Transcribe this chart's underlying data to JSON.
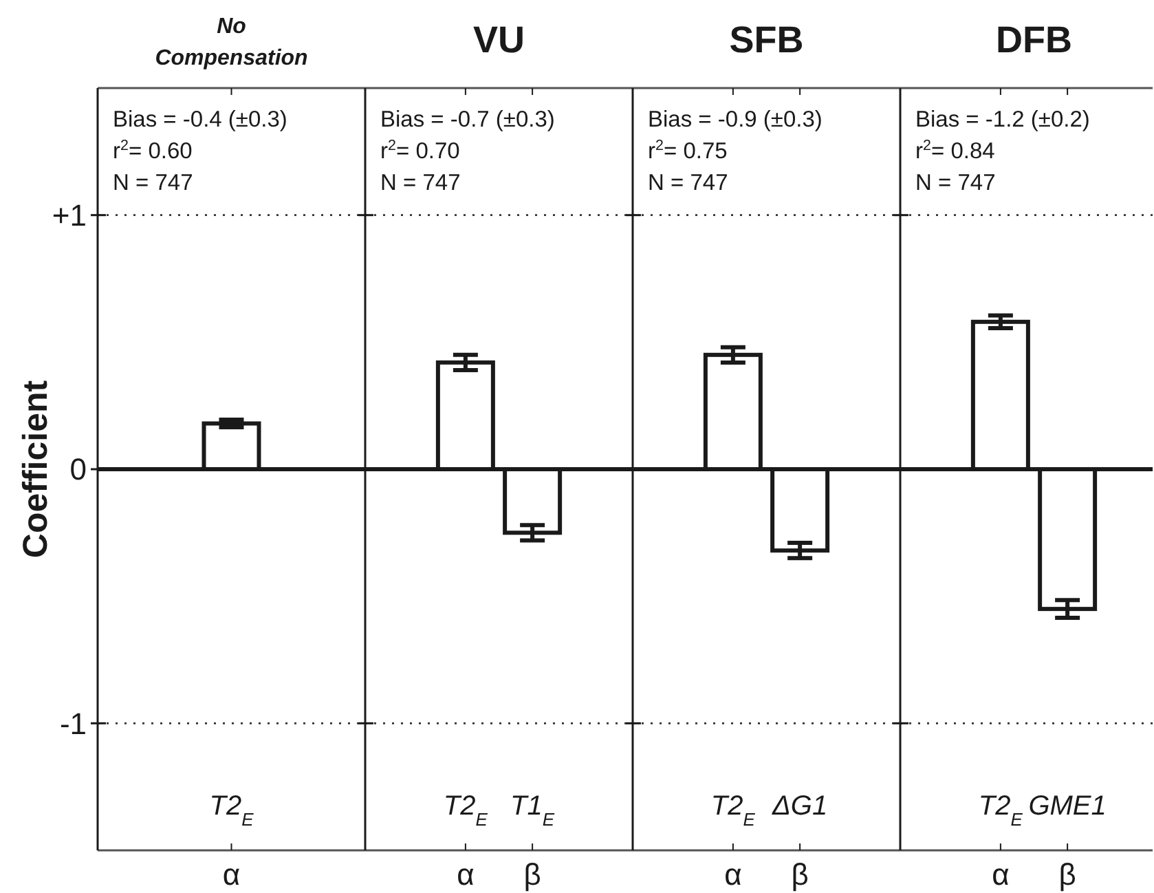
{
  "chart_data": [
    {
      "type": "bar",
      "title": "No Compensation",
      "ylabel": "Coefficient",
      "categories": [
        "α"
      ],
      "values": [
        0.18
      ],
      "errors": [
        0.015
      ],
      "color": "#ffffff",
      "ylim": [
        -1.5,
        1.5
      ],
      "yticks": [
        {
          "value": 1,
          "label": "+1"
        },
        0,
        {
          "value": -1,
          "label": "-1"
        }
      ],
      "grid": "y",
      "annotations": [
        "Bias = -0.4 (±0.3)",
        "r$^{2}$= 0.60",
        "N = 747",
        "T2$_{E}$"
      ]
    },
    {
      "type": "bar",
      "title": "VU",
      "categories": [
        "α",
        "β"
      ],
      "values": [
        0.42,
        -0.25
      ],
      "errors": [
        0.03,
        0.03
      ],
      "color": "#ffffff",
      "ylim": [
        -1.5,
        1.5
      ],
      "yticks": [
        {
          "value": 1,
          "label": null
        },
        {
          "value": 0,
          "label": null
        },
        {
          "value": -1,
          "label": null
        }
      ],
      "grid": "y",
      "tick_labels": "x",
      "annotations": [
        "Bias = -0.7 (±0.3)",
        "r$^{2}$= 0.70",
        "N = 747",
        "T2$_{E}$",
        "T1$_{E}$"
      ]
    },
    {
      "type": "bar",
      "title": "SFB",
      "categories": [
        "α",
        "β"
      ],
      "values": [
        0.45,
        -0.32
      ],
      "errors": [
        0.03,
        0.03
      ],
      "color": "#ffffff",
      "ylim": [
        -1.5,
        1.5
      ],
      "yticks": [
        {
          "value": 1,
          "label": null
        },
        {
          "value": 0,
          "label": null
        },
        {
          "value": -1,
          "label": null
        }
      ],
      "grid": "y",
      "tick_labels": "x",
      "annotations": [
        "Bias = -0.9 (±0.3)",
        "r$^{2}$= 0.75",
        "N = 747",
        "T2$_{E}$",
        "ΔG1"
      ]
    },
    {
      "type": "bar",
      "title": "DFB",
      "categories": [
        "α",
        "β"
      ],
      "values": [
        0.58,
        -0.55
      ],
      "errors": [
        0.025,
        0.035
      ],
      "color": "#ffffff",
      "ylim": [
        -1.5,
        1.5
      ],
      "yticks": [
        {
          "value": 1,
          "label": null
        },
        {
          "value": 0,
          "label": null
        },
        {
          "value": -1,
          "label": null
        }
      ],
      "grid": "y",
      "tick_labels": "x",
      "annotations": [
        "Bias = -1.2 (±0.2)",
        "r$^{2}$= 0.84",
        "N = 747",
        "T2$_{E}$",
        "GME1"
      ]
    }
  ]
}
